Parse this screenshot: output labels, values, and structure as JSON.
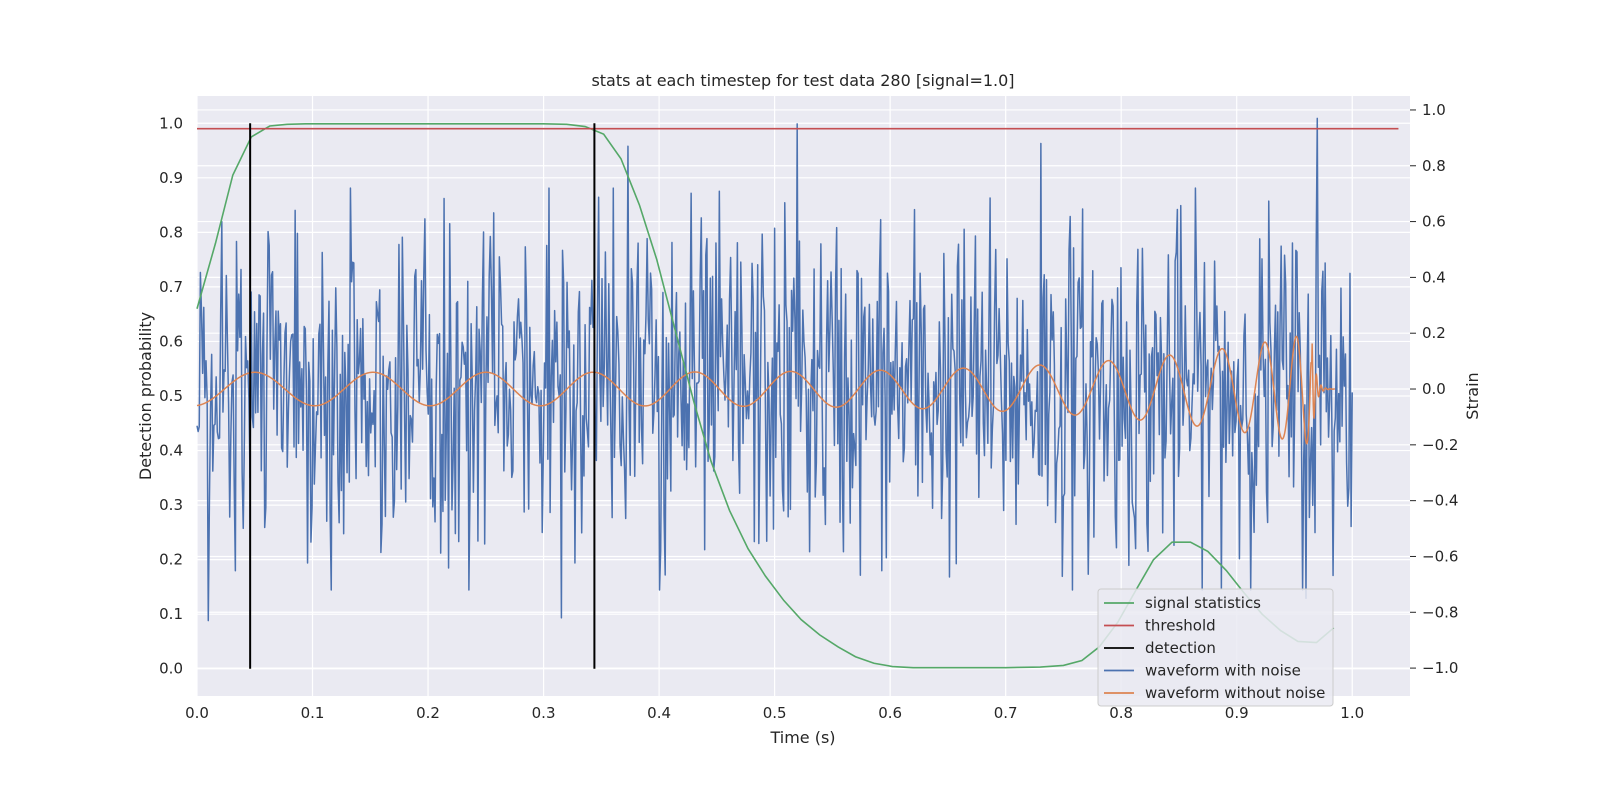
{
  "chart_data": {
    "type": "line",
    "title": "stats at each timestep for test data 280 [signal=1.0]",
    "xlabel": "Time (s)",
    "ylabel": "Detection probability",
    "y2label": "Strain",
    "xlim": [
      0.0,
      1.05
    ],
    "ylim": [
      -0.05,
      1.05
    ],
    "y2lim": [
      -1.1,
      1.05
    ],
    "x_ticks": [
      "0.0",
      "0.1",
      "0.2",
      "0.3",
      "0.4",
      "0.5",
      "0.6",
      "0.7",
      "0.8",
      "0.9",
      "1.0"
    ],
    "y_ticks": [
      "0.0",
      "0.1",
      "0.2",
      "0.3",
      "0.4",
      "0.5",
      "0.6",
      "0.7",
      "0.8",
      "0.9",
      "1.0"
    ],
    "y2_ticks": [
      "−1.0",
      "−0.8",
      "−0.6",
      "−0.4",
      "−0.2",
      "0.0",
      "0.2",
      "0.4",
      "0.6",
      "0.8",
      "1.0"
    ],
    "grid": true,
    "legend_position": "bottom-right",
    "series": [
      {
        "name": "signal statistics",
        "color": "#55a868",
        "x": [
          0.0,
          0.016,
          0.031,
          0.047,
          0.063,
          0.078,
          0.094,
          0.15,
          0.2,
          0.25,
          0.3,
          0.32,
          0.336,
          0.352,
          0.367,
          0.383,
          0.398,
          0.414,
          0.43,
          0.445,
          0.461,
          0.477,
          0.492,
          0.508,
          0.523,
          0.539,
          0.555,
          0.57,
          0.586,
          0.602,
          0.62,
          0.66,
          0.7,
          0.73,
          0.75,
          0.766,
          0.781,
          0.797,
          0.813,
          0.828,
          0.844,
          0.86,
          0.875,
          0.891,
          0.906,
          0.922,
          0.938,
          0.953,
          0.969,
          0.984
        ],
        "y": [
          0.66,
          0.78,
          0.905,
          0.975,
          0.995,
          0.998,
          0.999,
          0.999,
          0.999,
          0.999,
          0.999,
          0.998,
          0.994,
          0.98,
          0.935,
          0.85,
          0.75,
          0.62,
          0.49,
          0.38,
          0.29,
          0.22,
          0.17,
          0.125,
          0.09,
          0.062,
          0.04,
          0.022,
          0.01,
          0.004,
          0.002,
          0.002,
          0.002,
          0.003,
          0.006,
          0.015,
          0.04,
          0.085,
          0.145,
          0.2,
          0.232,
          0.232,
          0.215,
          0.18,
          0.14,
          0.1,
          0.07,
          0.05,
          0.048,
          0.075
        ]
      },
      {
        "name": "threshold",
        "color": "#c44e52",
        "x": [
          0.0,
          1.04
        ],
        "y": [
          0.99,
          0.99
        ]
      },
      {
        "name": "detection",
        "color": "#000000",
        "x": [
          0.046,
          0.344
        ],
        "y_range": [
          0.0,
          1.0
        ]
      },
      {
        "name": "waveform with noise",
        "color": "#4c72b0",
        "axis": "right",
        "x_range": [
          0.0,
          1.0
        ],
        "amplitude": 0.3,
        "peaks": [
          {
            "x": 0.01,
            "y": -0.83
          },
          {
            "x": 0.021,
            "y": 0.6
          },
          {
            "x": 0.085,
            "y": 0.64
          },
          {
            "x": 0.315,
            "y": -0.82
          },
          {
            "x": 0.373,
            "y": 0.87
          },
          {
            "x": 0.52,
            "y": 0.95
          },
          {
            "x": 0.73,
            "y": 0.88
          },
          {
            "x": 0.97,
            "y": 0.97
          },
          {
            "x": 0.96,
            "y": -0.75
          }
        ]
      },
      {
        "name": "waveform without noise",
        "color": "#dd8452",
        "axis": "right",
        "x_range": [
          0.0,
          0.985
        ],
        "amplitude_start": 0.06,
        "amplitude_end": 0.2,
        "merger_time": 0.965
      }
    ]
  }
}
